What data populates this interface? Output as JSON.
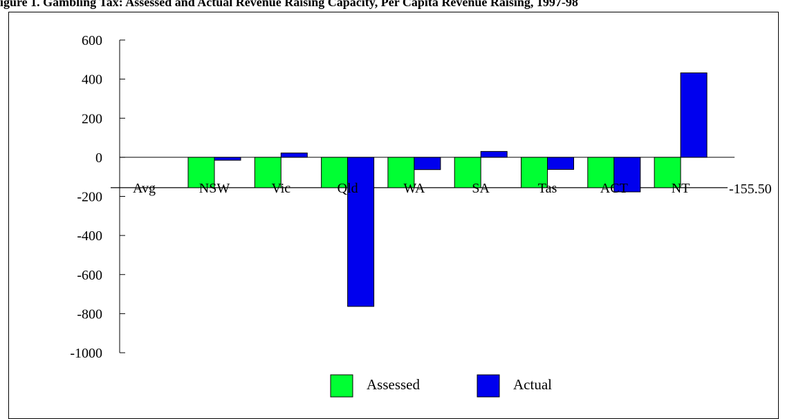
{
  "title": "igure 1. Gambling Tax: Assessed and Actual Revenue Raising Capacity, Per Capita Revenue Raising, 1997-98",
  "chart_data": {
    "type": "bar",
    "title": "igure 1. Gambling Tax: Assessed and Actual Revenue Raising Capacity, Per Capita Revenue Raising, 1997-98",
    "categories": [
      "NSW",
      "Vic",
      "Qld",
      "WA",
      "SA",
      "Tas",
      "ACT",
      "NT"
    ],
    "series": [
      {
        "name": "Assessed",
        "color": "#00ff33",
        "values": [
          -155.5,
          -155.5,
          -155.5,
          -155.5,
          -155.5,
          -155.5,
          -155.5,
          -155.5
        ]
      },
      {
        "name": "Actual",
        "color": "#0000ee",
        "values": [
          -15,
          22,
          -763,
          -63,
          30,
          -62,
          -177,
          432
        ]
      }
    ],
    "y_ticks": [
      "600",
      "400",
      "200",
      "0",
      "-200",
      "-400",
      "-600",
      "-800",
      "-1000"
    ],
    "ylim": [
      -1000,
      600
    ],
    "average": {
      "label": "Avg",
      "value": -155.5,
      "value_label": "-155.50"
    },
    "xlabel": "",
    "ylabel": "",
    "legend": {
      "placement": "bottom-center"
    },
    "grid": false
  }
}
